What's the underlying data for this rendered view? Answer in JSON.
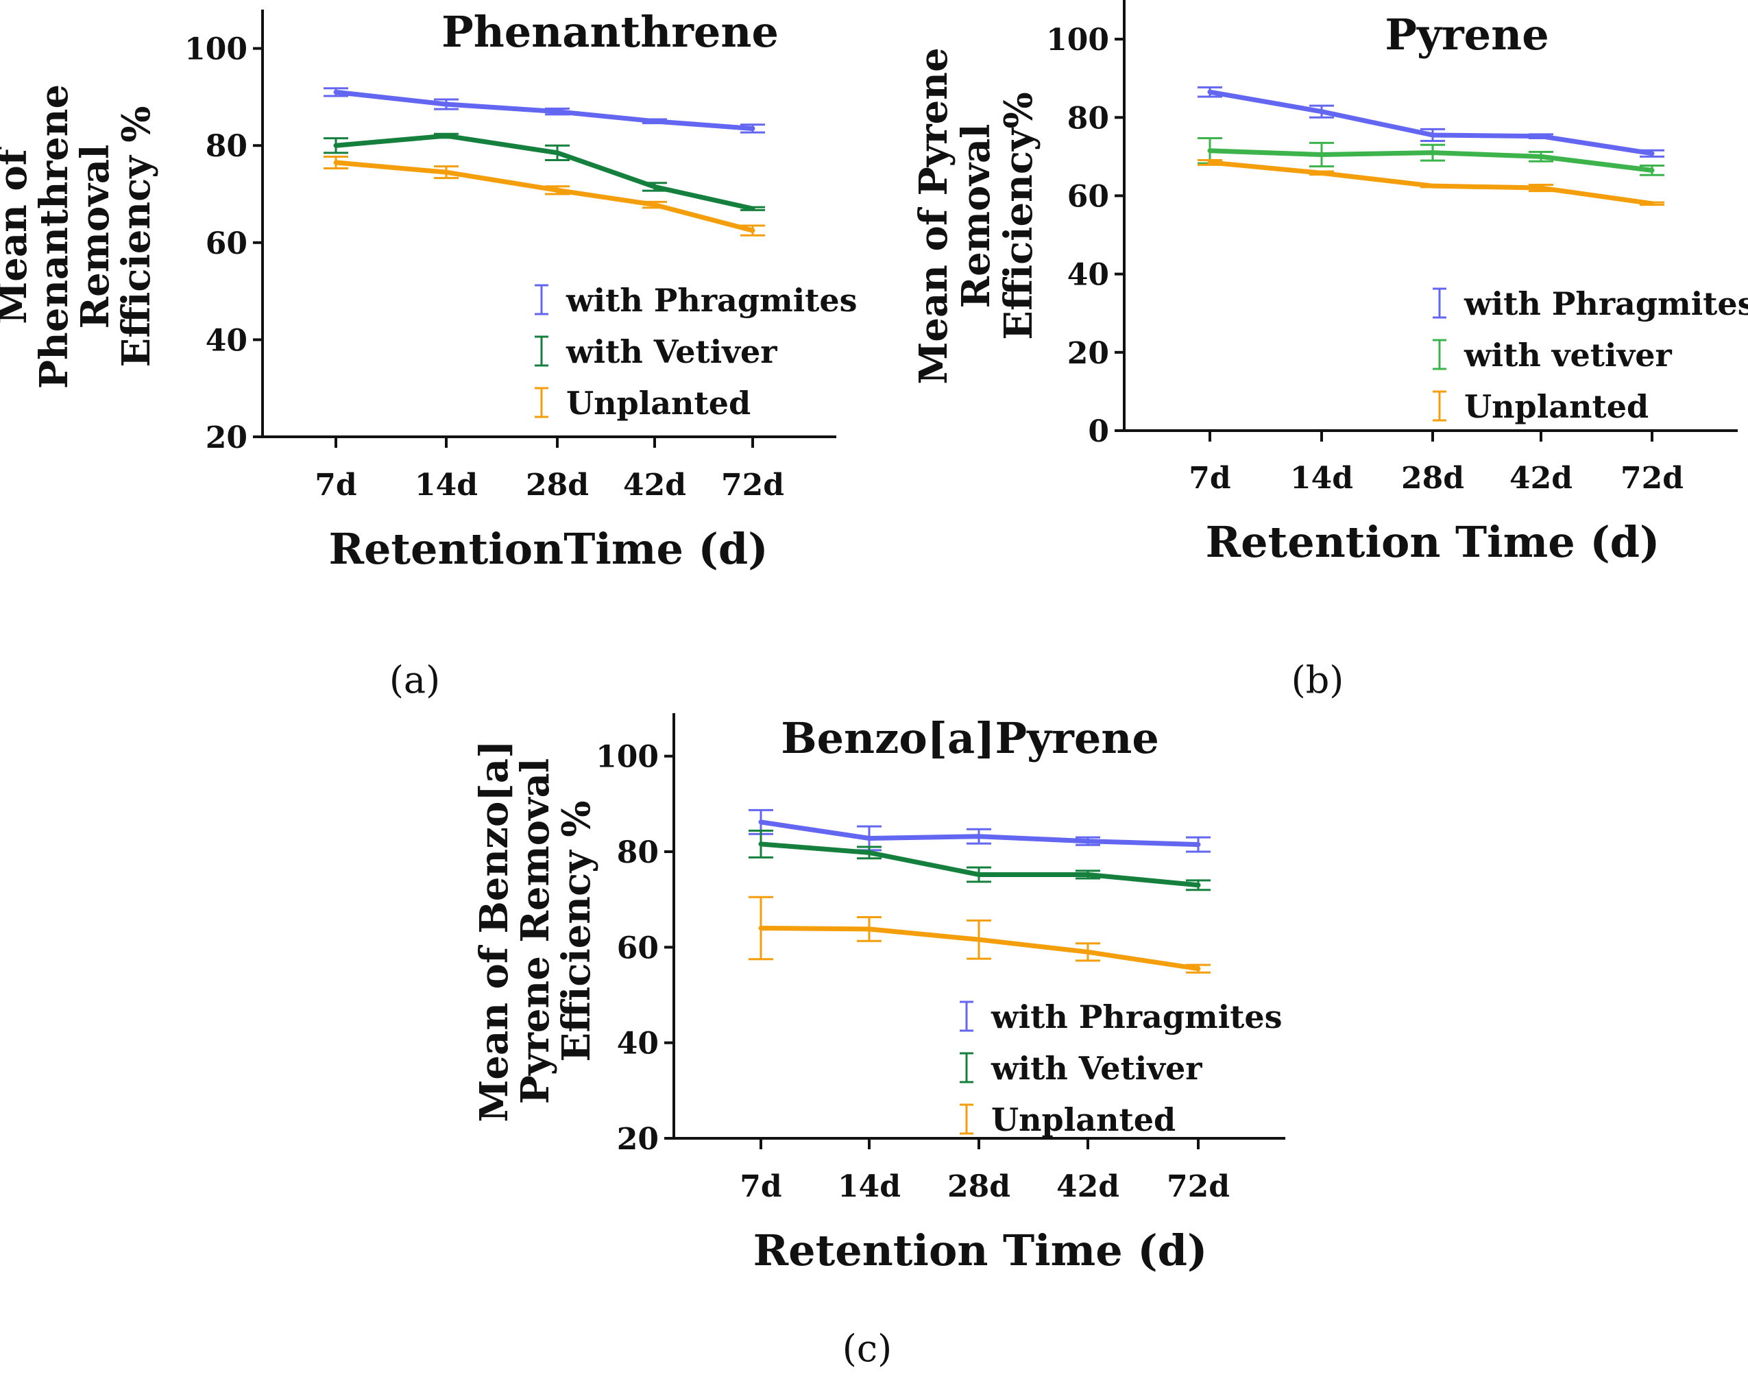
{
  "chart_data": [
    {
      "type": "line",
      "panel_label": "(a)",
      "title": "Phenanthrene",
      "xlabel": "RetentionTime (d)",
      "ylabel_lines": [
        "Mean of",
        "Phenanthrene",
        "Removal",
        "Efficiency %"
      ],
      "categories": [
        "7d",
        "14d",
        "28d",
        "42d",
        "72d"
      ],
      "ylim": [
        20,
        108
      ],
      "yticks": [
        20,
        40,
        60,
        80,
        100
      ],
      "legend_position": "center-right",
      "series": [
        {
          "name": "with Phragmites",
          "color": "#6366f1",
          "values": [
            91,
            88.5,
            87,
            85,
            83.5
          ],
          "err": [
            0.8,
            1,
            0.6,
            0.4,
            0.8
          ]
        },
        {
          "name": "with Vetiver",
          "color": "#15803d",
          "values": [
            80,
            82,
            78.5,
            71.5,
            67
          ],
          "err": [
            1.5,
            0.4,
            1.5,
            0.8,
            0.3
          ]
        },
        {
          "name": "Unplanted",
          "color": "#f59e0b",
          "values": [
            76.5,
            74.5,
            70.8,
            67.8,
            62.5
          ],
          "err": [
            1.2,
            1.2,
            0.8,
            0.6,
            1.0
          ]
        }
      ]
    },
    {
      "type": "line",
      "panel_label": "(b)",
      "title": "Pyrene",
      "xlabel": "Retention Time (d)",
      "ylabel_lines": [
        "Mean of Pyrene",
        "Removal",
        "Efficiency%"
      ],
      "categories": [
        "7d",
        "14d",
        "28d",
        "42d",
        "72d"
      ],
      "ylim": [
        0,
        110
      ],
      "yticks": [
        0,
        20,
        40,
        60,
        80,
        100
      ],
      "legend_position": "bottom-right",
      "series": [
        {
          "name": "with Phragmites",
          "color": "#6366f1",
          "values": [
            86.5,
            81.5,
            75.5,
            75.2,
            70.8
          ],
          "err": [
            1.2,
            1.5,
            1.5,
            0.5,
            0.8
          ]
        },
        {
          "name": "with vetiver",
          "color": "#3cb44b",
          "values": [
            71.5,
            70.5,
            71,
            70,
            66.5
          ],
          "err": [
            3.2,
            3,
            2,
            1.2,
            1.2
          ]
        },
        {
          "name": "Unplanted",
          "color": "#f59e0b",
          "values": [
            68.5,
            65.8,
            62.5,
            62,
            58
          ],
          "err": [
            0.6,
            0.4,
            0.3,
            0.8,
            0.3
          ]
        }
      ]
    },
    {
      "type": "line",
      "panel_label": "(c)",
      "title": "Benzo[a]Pyrene",
      "xlabel": "Retention Time (d)",
      "ylabel_lines": [
        "Mean of Benzo[a]",
        "Pyrene Removal",
        "Efficiency %"
      ],
      "categories": [
        "7d",
        "14d",
        "28d",
        "42d",
        "72d"
      ],
      "ylim": [
        20,
        109
      ],
      "yticks": [
        20,
        40,
        60,
        80,
        100
      ],
      "legend_position": "bottom-right",
      "series": [
        {
          "name": "with Phragmites",
          "color": "#6366f1",
          "values": [
            86.2,
            82.8,
            83.2,
            82.2,
            81.5
          ],
          "err": [
            2.5,
            2.5,
            1.5,
            0.8,
            1.5
          ]
        },
        {
          "name": "with Vetiver",
          "color": "#15803d",
          "values": [
            81.6,
            79.8,
            75.2,
            75.2,
            73
          ],
          "err": [
            2.8,
            1.2,
            1.5,
            0.8,
            1.0
          ]
        },
        {
          "name": "Unplanted",
          "color": "#f59e0b",
          "values": [
            64,
            63.8,
            61.6,
            59,
            55.5
          ],
          "err": [
            6.5,
            2.5,
            4,
            1.8,
            0.8
          ]
        }
      ]
    }
  ]
}
